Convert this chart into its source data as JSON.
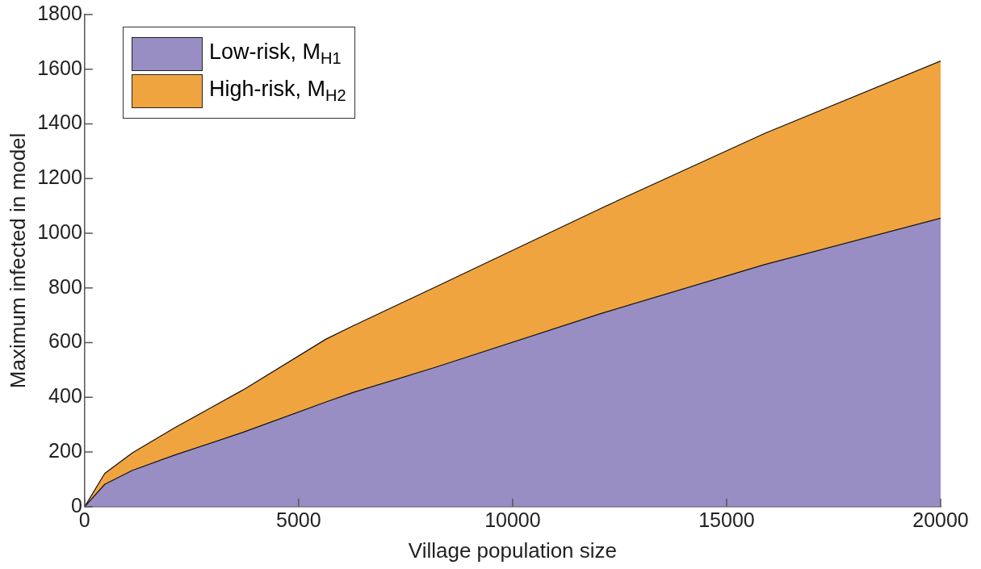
{
  "chart_data": {
    "type": "area",
    "stacked": true,
    "xlabel": "Village population size",
    "ylabel": "Maximum infected in model",
    "x": [
      0,
      471,
      1118,
      2087,
      3700,
      5640,
      6280,
      8200,
      12100,
      15900,
      20000
    ],
    "series": [
      {
        "name": "Low-risk, M$_{H1}$",
        "color": "#988ec3",
        "values": [
          0,
          82,
          133,
          188,
          272,
          383,
          418,
          510,
          708,
          886,
          1055
        ]
      },
      {
        "name": "High-risk, M$_{H2}$",
        "color": "#f0a440",
        "values": [
          0,
          40,
          64,
          99,
          155,
          230,
          244,
          294,
          386,
          480,
          575
        ]
      }
    ],
    "xlim": [
      0,
      20000
    ],
    "xticks": [
      0,
      5000,
      10000,
      15000,
      20000
    ],
    "ylim": [
      0,
      1800
    ],
    "yticks": [
      0,
      200,
      400,
      600,
      800,
      1000,
      1200,
      1400,
      1600,
      1800
    ],
    "grid": false,
    "legend": "top left"
  }
}
